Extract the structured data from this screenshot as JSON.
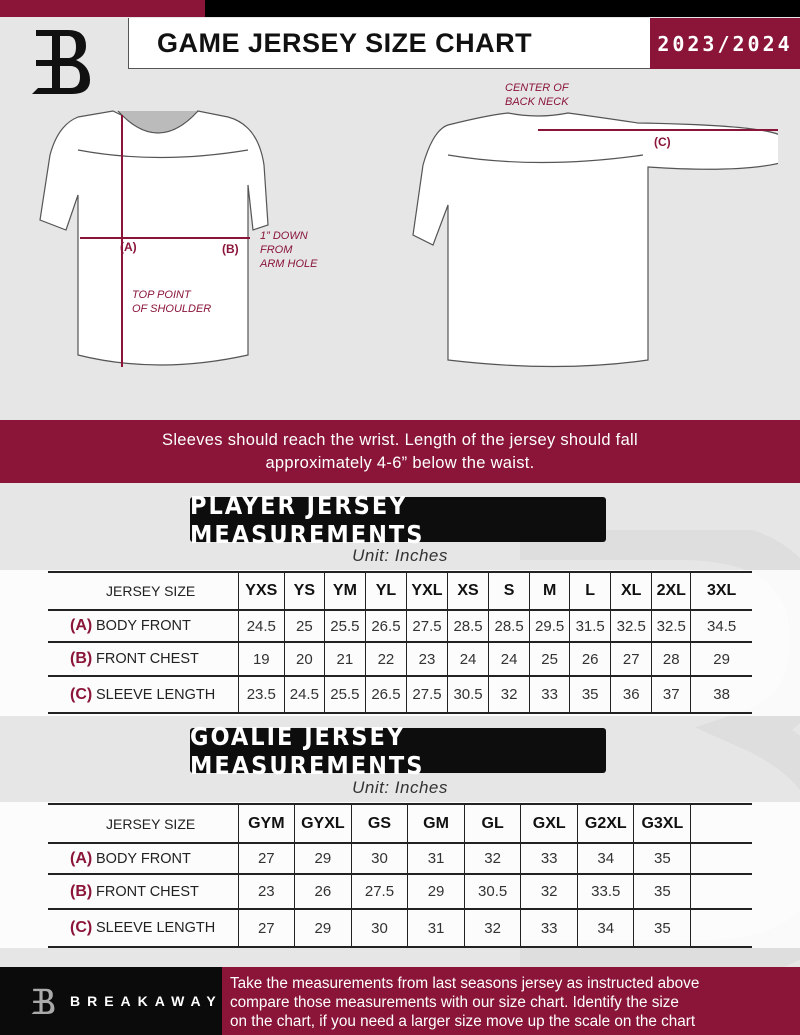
{
  "header": {
    "title": "GAME JERSEY SIZE CHART",
    "season": "2023/2024"
  },
  "colors": {
    "brand": "#8a1538",
    "dark": "#0d0d0d"
  },
  "diagram": {
    "front": {
      "label_a": "(A)",
      "note_a": [
        "TOP POINT",
        "OF SHOULDER"
      ],
      "label_b": "(B)",
      "note_b": [
        "1” DOWN",
        "FROM",
        "ARM HOLE"
      ]
    },
    "back": {
      "note_c": [
        "CENTER OF",
        "BACK NECK"
      ],
      "label_c": "(C)"
    }
  },
  "instructions": [
    "Sleeves should reach the wrist. Length of the jersey should fall",
    "approximately 4-6” below the waist."
  ],
  "player": {
    "title": "PLAYER JERSEY MEASUREMENTS",
    "unit": "Unit: Inches",
    "header_label": "JERSEY SIZE",
    "sizes": [
      "YXS",
      "YS",
      "YM",
      "YL",
      "YXL",
      "XS",
      "S",
      "M",
      "L",
      "XL",
      "2XL",
      "3XL"
    ],
    "rows": [
      {
        "letter": "(A)",
        "label": "BODY FRONT",
        "values": [
          "24.5",
          "25",
          "25.5",
          "26.5",
          "27.5",
          "28.5",
          "28.5",
          "29.5",
          "31.5",
          "32.5",
          "32.5",
          "34.5"
        ]
      },
      {
        "letter": "(B)",
        "label": "FRONT CHEST",
        "values": [
          "19",
          "20",
          "21",
          "22",
          "23",
          "24",
          "24",
          "25",
          "26",
          "27",
          "28",
          "29"
        ]
      },
      {
        "letter": "(C)",
        "label": "SLEEVE LENGTH",
        "values": [
          "23.5",
          "24.5",
          "25.5",
          "26.5",
          "27.5",
          "30.5",
          "32",
          "33",
          "35",
          "36",
          "37",
          "38"
        ]
      }
    ]
  },
  "goalie": {
    "title": "GOALIE JERSEY MEASUREMENTS",
    "unit": "Unit: Inches",
    "header_label": "JERSEY SIZE",
    "sizes": [
      "GYM",
      "GYXL",
      "GS",
      "GM",
      "GL",
      "GXL",
      "G2XL",
      "G3XL",
      ""
    ],
    "rows": [
      {
        "letter": "(A)",
        "label": "BODY FRONT",
        "values": [
          "27",
          "29",
          "30",
          "31",
          "32",
          "33",
          "34",
          "35",
          ""
        ]
      },
      {
        "letter": "(B)",
        "label": "FRONT CHEST",
        "values": [
          "23",
          "26",
          "27.5",
          "29",
          "30.5",
          "32",
          "33.5",
          "35",
          ""
        ]
      },
      {
        "letter": "(C)",
        "label": "SLEEVE LENGTH",
        "values": [
          "27",
          "29",
          "30",
          "31",
          "32",
          "33",
          "34",
          "35",
          ""
        ]
      }
    ]
  },
  "footer": {
    "brand": "BREAKAWAY",
    "text": [
      "Take the measurements from last seasons jersey as instructed above",
      "compare those measurements  with our size chart. Identify the size",
      "on the chart, if you need a larger size move up the scale on the chart"
    ]
  }
}
